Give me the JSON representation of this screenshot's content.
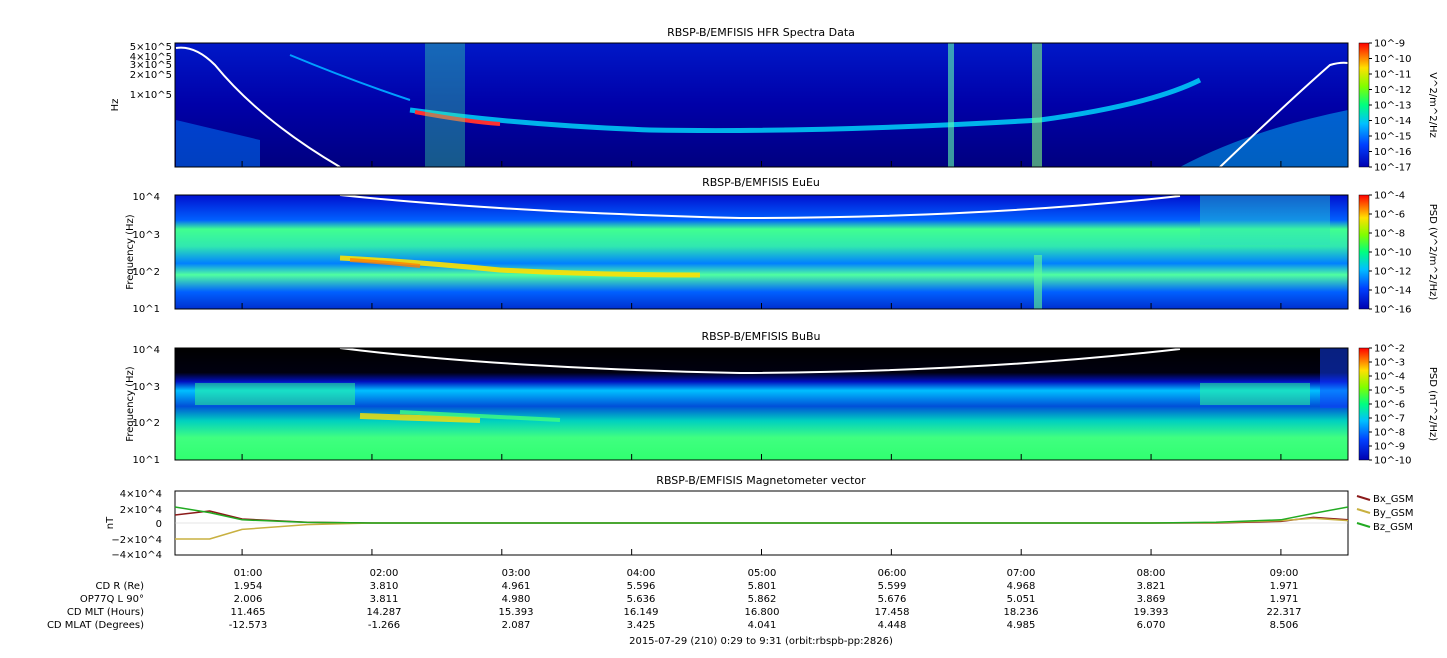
{
  "panels": [
    {
      "title": "RBSP-B/EMFISIS  HFR Spectra Data",
      "ylabel": "Hz",
      "yticks": [
        "5×10^5",
        "4×10^5",
        "3×10^5",
        "2×10^5",
        "1×10^5"
      ],
      "colorbar_label": "V^2/m^2/Hz",
      "colorbar_ticks": [
        "10^-9",
        "10^-10",
        "10^-11",
        "10^-12",
        "10^-13",
        "10^-14",
        "10^-15",
        "10^-16",
        "10^-17"
      ]
    },
    {
      "title": "RBSP-B/EMFISIS  EuEu",
      "ylabel": "Frequency (Hz)",
      "yticks": [
        "10^4",
        "10^3",
        "10^2",
        "10^1"
      ],
      "colorbar_label": "PSD (V^2/m^2/Hz)",
      "colorbar_ticks": [
        "10^-4",
        "10^-6",
        "10^-8",
        "10^-10",
        "10^-12",
        "10^-14",
        "10^-16"
      ]
    },
    {
      "title": "RBSP-B/EMFISIS  BuBu",
      "ylabel": "Frequency (Hz)",
      "yticks": [
        "10^4",
        "10^3",
        "10^2",
        "10^1"
      ],
      "colorbar_label": "PSD (nT^2/Hz)",
      "colorbar_ticks": [
        "10^-2",
        "10^-3",
        "10^-4",
        "10^-5",
        "10^-6",
        "10^-7",
        "10^-8",
        "10^-9",
        "10^-10"
      ]
    },
    {
      "title": "RBSP-B/EMFISIS  Magnetometer vector",
      "ylabel": "nT",
      "yticks": [
        "4×10^4",
        "2×10^4",
        "0",
        "−2×10^4",
        "−4×10^4"
      ]
    }
  ],
  "chart_data": {
    "type": "line",
    "title": "RBSP-B/EMFISIS  Magnetometer vector",
    "ylabel": "nT",
    "ylim": [
      -40000,
      40000
    ],
    "x": [
      "00:29",
      "00:45",
      "01:00",
      "01:30",
      "02:00",
      "03:00",
      "04:00",
      "05:00",
      "06:00",
      "07:00",
      "08:00",
      "08:30",
      "09:00",
      "09:15",
      "09:31"
    ],
    "series": [
      {
        "name": "Bx_GSM",
        "color": "#8b1a1a",
        "values": [
          10000,
          15000,
          5000,
          1000,
          0,
          0,
          0,
          0,
          0,
          0,
          0,
          0,
          2000,
          7000,
          4000
        ]
      },
      {
        "name": "By_GSM",
        "color": "#c8b040",
        "values": [
          -20000,
          -20000,
          -8000,
          -2000,
          0,
          0,
          0,
          0,
          0,
          0,
          0,
          500,
          3000,
          6000,
          3000
        ]
      },
      {
        "name": "Bz_GSM",
        "color": "#22aa22",
        "values": [
          20000,
          13000,
          4000,
          800,
          0,
          0,
          0,
          0,
          0,
          0,
          0,
          1000,
          4000,
          12000,
          20000
        ]
      }
    ],
    "legend": "right"
  },
  "xaxis": {
    "ticks": [
      "01:00",
      "02:00",
      "03:00",
      "04:00",
      "05:00",
      "06:00",
      "07:00",
      "08:00",
      "09:00"
    ]
  },
  "ephemeris": [
    {
      "label": "CD R (Re)",
      "values": [
        "1.954",
        "3.810",
        "4.961",
        "5.596",
        "5.801",
        "5.599",
        "4.968",
        "3.821",
        "1.971"
      ]
    },
    {
      "label": "OP77Q L 90°",
      "values": [
        "2.006",
        "3.811",
        "4.980",
        "5.636",
        "5.862",
        "5.676",
        "5.051",
        "3.869",
        "1.971"
      ]
    },
    {
      "label": "CD MLT (Hours)",
      "values": [
        "11.465",
        "14.287",
        "15.393",
        "16.149",
        "16.800",
        "17.458",
        "18.236",
        "19.393",
        "22.317"
      ]
    },
    {
      "label": "CD MLAT (Degrees)",
      "values": [
        "-12.573",
        "-1.266",
        "2.087",
        "3.425",
        "4.041",
        "4.448",
        "4.985",
        "6.070",
        "8.506"
      ]
    }
  ],
  "footer": "2015-07-29 (210) 0:29 to 9:31 (orbit:rbspb-pp:2826)",
  "colors": {
    "background": "#ffffff",
    "spectrogram_low": "#00008b",
    "spectrogram_mid": "#00ff80",
    "spectrogram_high": "#ff0000",
    "frequency_line": "#ffffff"
  }
}
